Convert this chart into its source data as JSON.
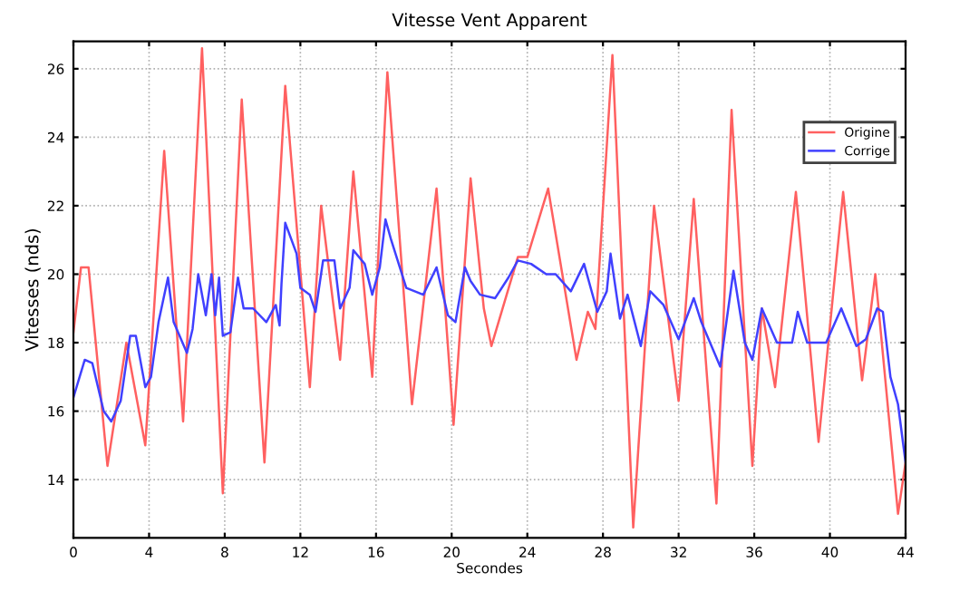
{
  "chart_data": {
    "type": "line",
    "title": "Vitesse Vent Apparent",
    "xlabel": "Secondes",
    "ylabel": "Vitesses (nds)",
    "xlim": [
      0,
      44
    ],
    "xticks": [
      0,
      4,
      8,
      12,
      16,
      20,
      24,
      28,
      32,
      36,
      40,
      44
    ],
    "ylim": [
      12.3,
      26.8
    ],
    "yticks": [
      14,
      16,
      18,
      20,
      22,
      24,
      26
    ],
    "grid": true,
    "legend": "top right",
    "marker": "none",
    "line_style": "solid",
    "series": [
      {
        "name": "Origine",
        "color": "#ff6060",
        "x": [
          0,
          0.4,
          0.8,
          1.8,
          2.8,
          3.8,
          4.8,
          5.8,
          6.8,
          7.9,
          8.9,
          10.1,
          11.2,
          12.5,
          13.1,
          14.1,
          14.8,
          15.8,
          16.6,
          17.9,
          19.2,
          20.1,
          21.0,
          21.7,
          22.1,
          23.5,
          24.0,
          25.1,
          26.6,
          27.2,
          27.6,
          28.5,
          29.6,
          30.7,
          32.0,
          32.8,
          34.0,
          34.8,
          35.9,
          36.4,
          37.1,
          38.2,
          39.4,
          40.7,
          41.7,
          42.4,
          43.6,
          44
        ],
        "values": [
          18.3,
          20.2,
          20.2,
          14.4,
          18.0,
          15.0,
          23.6,
          15.7,
          26.6,
          13.6,
          25.1,
          14.5,
          25.5,
          16.7,
          22.0,
          17.5,
          23.0,
          17.0,
          25.9,
          16.2,
          22.5,
          15.6,
          22.8,
          19.0,
          17.9,
          20.5,
          20.5,
          22.5,
          17.5,
          18.9,
          18.4,
          26.4,
          12.6,
          22.0,
          16.3,
          22.2,
          13.3,
          24.8,
          14.4,
          19.0,
          16.7,
          22.4,
          15.1,
          22.4,
          16.9,
          20.0,
          13.0,
          14.5
        ]
      },
      {
        "name": "Corrige",
        "color": "#4040ff",
        "x": [
          0,
          0.6,
          1.0,
          1.6,
          2.0,
          2.5,
          3.0,
          3.3,
          3.8,
          4.1,
          4.5,
          5.0,
          5.3,
          6.0,
          6.3,
          6.6,
          7.0,
          7.3,
          7.5,
          7.7,
          7.9,
          8.3,
          8.7,
          9.0,
          9.5,
          10.2,
          10.7,
          10.9,
          11.0,
          11.2,
          11.8,
          12.0,
          12.5,
          12.8,
          13.2,
          13.8,
          14.1,
          14.6,
          14.8,
          15.4,
          15.8,
          16.2,
          16.5,
          16.8,
          17.6,
          18.5,
          19.2,
          19.8,
          20.2,
          20.7,
          21.0,
          21.5,
          22.3,
          23.0,
          23.5,
          24.2,
          25.0,
          25.5,
          26.3,
          27.0,
          27.7,
          28.2,
          28.4,
          28.9,
          29.3,
          30.0,
          30.5,
          31.2,
          32.0,
          32.8,
          33.2,
          34.2,
          34.9,
          35.5,
          35.9,
          36.4,
          37.2,
          38.0,
          38.3,
          38.8,
          39.8,
          40.6,
          41.4,
          41.9,
          42.5,
          42.8,
          43.2,
          43.6,
          44
        ],
        "values": [
          16.4,
          17.5,
          17.4,
          16.0,
          15.7,
          16.3,
          18.2,
          18.2,
          16.7,
          17.0,
          18.6,
          19.9,
          18.6,
          17.7,
          18.4,
          20.0,
          18.8,
          20.0,
          18.8,
          19.9,
          18.2,
          18.3,
          19.9,
          19.0,
          19.0,
          18.6,
          19.1,
          18.5,
          19.7,
          21.5,
          20.6,
          19.6,
          19.4,
          18.9,
          20.4,
          20.4,
          19.0,
          19.6,
          20.7,
          20.3,
          19.4,
          20.2,
          21.6,
          21.0,
          19.6,
          19.4,
          20.2,
          18.8,
          18.6,
          20.2,
          19.8,
          19.4,
          19.3,
          19.9,
          20.4,
          20.3,
          20.0,
          20.0,
          19.5,
          20.3,
          18.9,
          19.5,
          20.6,
          18.7,
          19.4,
          17.9,
          19.5,
          19.1,
          18.1,
          19.3,
          18.6,
          17.3,
          20.1,
          18.0,
          17.5,
          19.0,
          18.0,
          18.0,
          18.9,
          18.0,
          18.0,
          19.0,
          17.9,
          18.1,
          19.0,
          18.9,
          17.0,
          16.2,
          14.5
        ]
      }
    ]
  }
}
